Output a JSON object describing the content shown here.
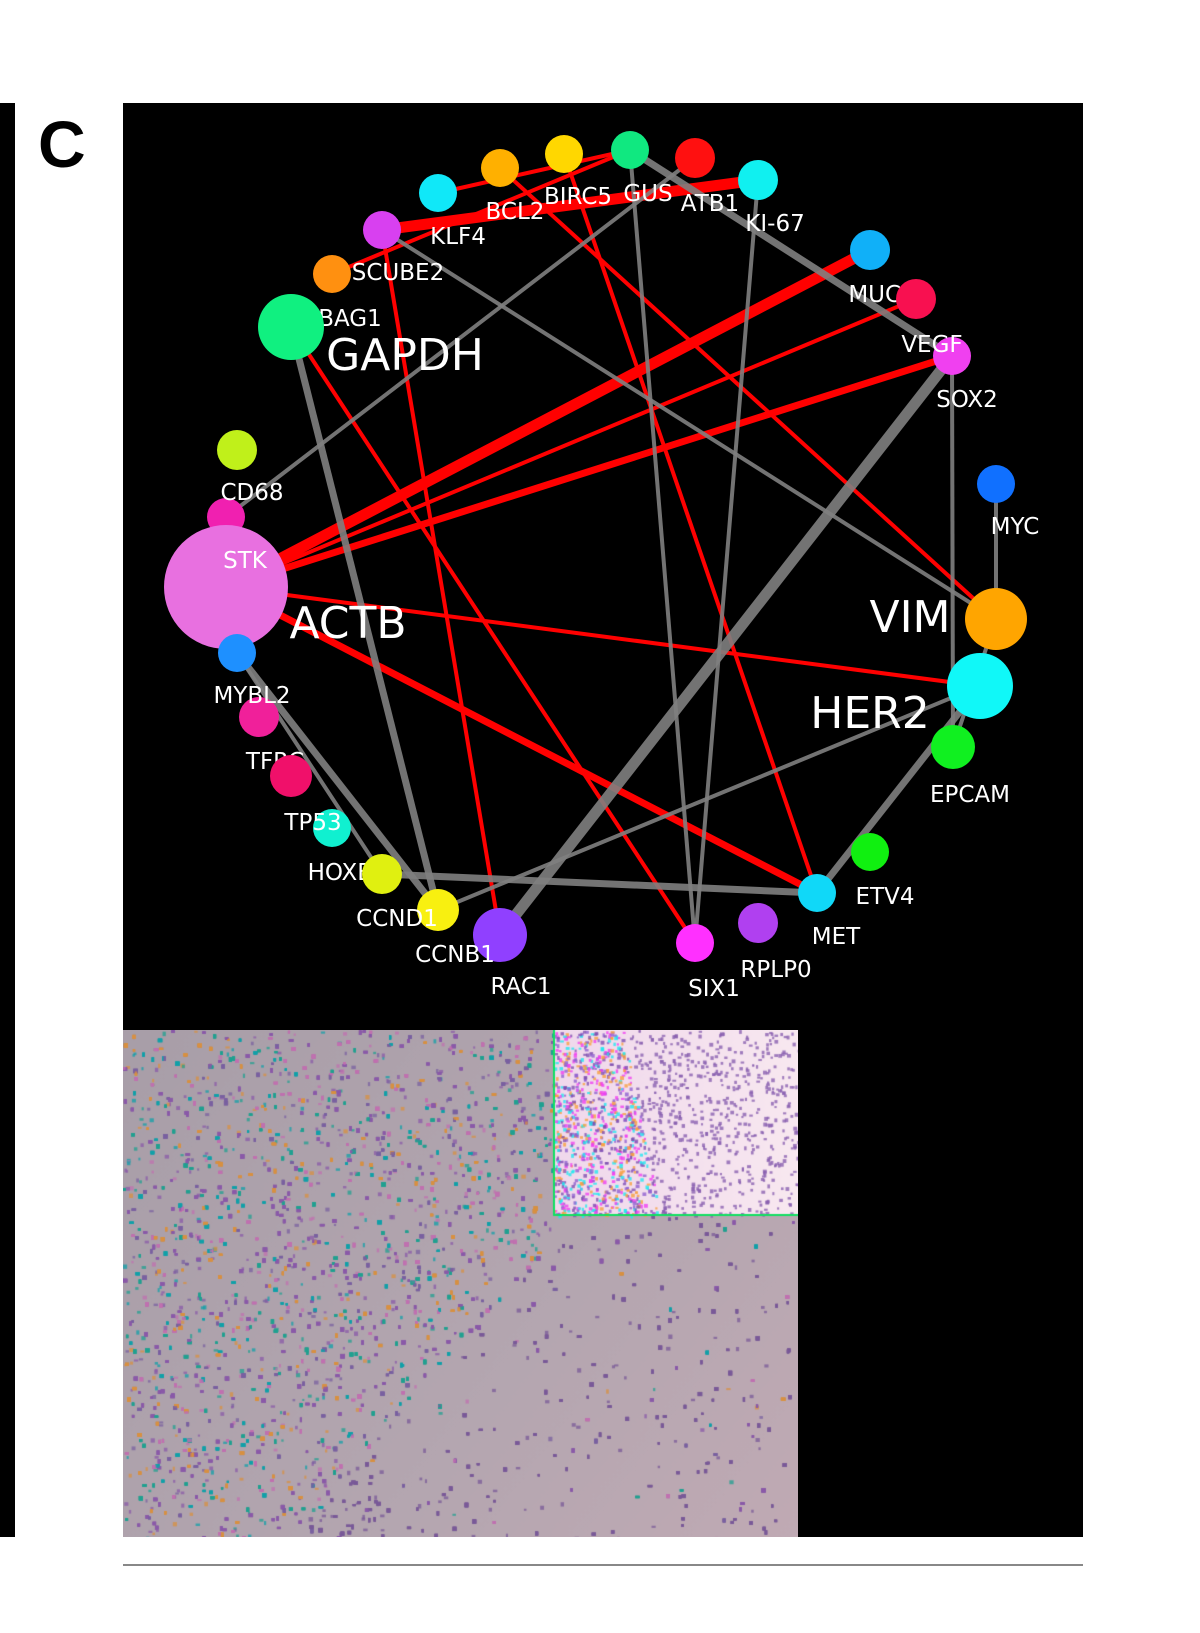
{
  "panel_label": "C",
  "network": {
    "nodes": [
      {
        "id": "CD68",
        "label": "CD68",
        "color": "#c0f01a",
        "major": false
      },
      {
        "id": "STK",
        "label": "STK",
        "color": "#f020b0",
        "major": false
      },
      {
        "id": "ACTB",
        "label": "ACTB",
        "color": "#e870e0",
        "major": true
      },
      {
        "id": "MYBL2",
        "label": "MYBL2",
        "color": "#1e90ff",
        "major": false
      },
      {
        "id": "TFRC",
        "label": "TFRC",
        "color": "#f0209a",
        "major": false
      },
      {
        "id": "TP53",
        "label": "TP53",
        "color": "#f0106a",
        "major": false
      },
      {
        "id": "HOXB13",
        "label": "HOXB13",
        "color": "#10f0d0",
        "major": false
      },
      {
        "id": "CCND1",
        "label": "CCND1",
        "color": "#e0f010",
        "major": false
      },
      {
        "id": "CCNB1",
        "label": "CCNB1",
        "color": "#f8f010",
        "major": false
      },
      {
        "id": "RAC1",
        "label": "RAC1",
        "color": "#9040ff",
        "major": false
      },
      {
        "id": "SIX1",
        "label": "SIX1",
        "color": "#ff30ff",
        "major": false
      },
      {
        "id": "RPLP0",
        "label": "RPLP0",
        "color": "#b040f0",
        "major": false
      },
      {
        "id": "MET",
        "label": "MET",
        "color": "#10d8f8",
        "major": false
      },
      {
        "id": "ETV4",
        "label": "ETV4",
        "color": "#10f010",
        "major": false
      },
      {
        "id": "EPCAM",
        "label": "EPCAM",
        "color": "#10f020",
        "major": false
      },
      {
        "id": "HER2",
        "label": "HER2",
        "color": "#10f8f8",
        "major": true
      },
      {
        "id": "VIM",
        "label": "VIM",
        "color": "#ffa500",
        "major": true
      },
      {
        "id": "MYC",
        "label": "MYC",
        "color": "#1070ff",
        "major": false
      },
      {
        "id": "SOX2",
        "label": "SOX2",
        "color": "#f040f0",
        "major": false
      },
      {
        "id": "VEGF",
        "label": "VEGF",
        "color": "#f81050",
        "major": false
      },
      {
        "id": "MUC1",
        "label": "MUC1",
        "color": "#10b0f8",
        "major": false
      },
      {
        "id": "KI67",
        "label": "KI-67",
        "color": "#10f0f0",
        "major": false
      },
      {
        "id": "SATB1",
        "label": "ATB1",
        "color": "#ff1010",
        "major": false
      },
      {
        "id": "GUS",
        "label": "GUS",
        "color": "#10e880",
        "major": false
      },
      {
        "id": "BIRC5",
        "label": "BIRC5",
        "color": "#ffd700",
        "major": false
      },
      {
        "id": "BCL2",
        "label": "BCL2",
        "color": "#ffb000",
        "major": false
      },
      {
        "id": "KLF4",
        "label": "KLF4",
        "color": "#10e8f8",
        "major": false
      },
      {
        "id": "SCUBE2",
        "label": "SCUBE2",
        "color": "#d840f0",
        "major": false
      },
      {
        "id": "BAG1",
        "label": "BAG1",
        "color": "#ff9010",
        "major": false
      },
      {
        "id": "GAPDH",
        "label": "GAPDH",
        "color": "#10f080",
        "major": true
      }
    ],
    "edge_colors": {
      "positive": "#ff0000",
      "negative": "#808080"
    },
    "edges": [
      {
        "source": "SCUBE2",
        "target": "KI67",
        "type": "positive",
        "weight": 3
      },
      {
        "source": "KLF4",
        "target": "GUS",
        "type": "positive",
        "weight": 1
      },
      {
        "source": "BAG1",
        "target": "GUS",
        "type": "positive",
        "weight": 1
      },
      {
        "source": "BCL2",
        "target": "VIM",
        "type": "positive",
        "weight": 1
      },
      {
        "source": "BIRC5",
        "target": "MET",
        "type": "positive",
        "weight": 1
      },
      {
        "source": "SCUBE2",
        "target": "RAC1",
        "type": "positive",
        "weight": 1
      },
      {
        "source": "GAPDH",
        "target": "SIX1",
        "type": "positive",
        "weight": 1
      },
      {
        "source": "ACTB",
        "target": "MUC1",
        "type": "positive",
        "weight": 3
      },
      {
        "source": "ACTB",
        "target": "VEGF",
        "type": "positive",
        "weight": 1
      },
      {
        "source": "ACTB",
        "target": "SOX2",
        "type": "positive",
        "weight": 2
      },
      {
        "source": "ACTB",
        "target": "HER2",
        "type": "positive",
        "weight": 1
      },
      {
        "source": "ACTB",
        "target": "MET",
        "type": "positive",
        "weight": 2
      },
      {
        "source": "GUS",
        "target": "SOX2",
        "type": "negative",
        "weight": 2
      },
      {
        "source": "GUS",
        "target": "SIX1",
        "type": "negative",
        "weight": 1
      },
      {
        "source": "KI67",
        "target": "SIX1",
        "type": "negative",
        "weight": 1
      },
      {
        "source": "SATB1",
        "target": "STK",
        "type": "negative",
        "weight": 1
      },
      {
        "source": "SCUBE2",
        "target": "VIM",
        "type": "negative",
        "weight": 1
      },
      {
        "source": "GAPDH",
        "target": "CCNB1",
        "type": "negative",
        "weight": 2
      },
      {
        "source": "SOX2",
        "target": "RAC1",
        "type": "negative",
        "weight": 3
      },
      {
        "source": "SOX2",
        "target": "EPCAM",
        "type": "negative",
        "weight": 1
      },
      {
        "source": "MYC",
        "target": "VIM",
        "type": "negative",
        "weight": 1
      },
      {
        "source": "HER2",
        "target": "MET",
        "type": "negative",
        "weight": 2
      },
      {
        "source": "HER2",
        "target": "CCNB1",
        "type": "negative",
        "weight": 1
      },
      {
        "source": "CCND1",
        "target": "MET",
        "type": "negative",
        "weight": 2
      },
      {
        "source": "MYBL2",
        "target": "CCND1",
        "type": "negative",
        "weight": 1
      },
      {
        "source": "MYBL2",
        "target": "CCNB1",
        "type": "negative",
        "weight": 2
      },
      {
        "source": "VIM",
        "target": "EPCAM",
        "type": "negative",
        "weight": 1
      }
    ]
  },
  "tissue_image": {
    "inset_border_color": "#10e060"
  }
}
